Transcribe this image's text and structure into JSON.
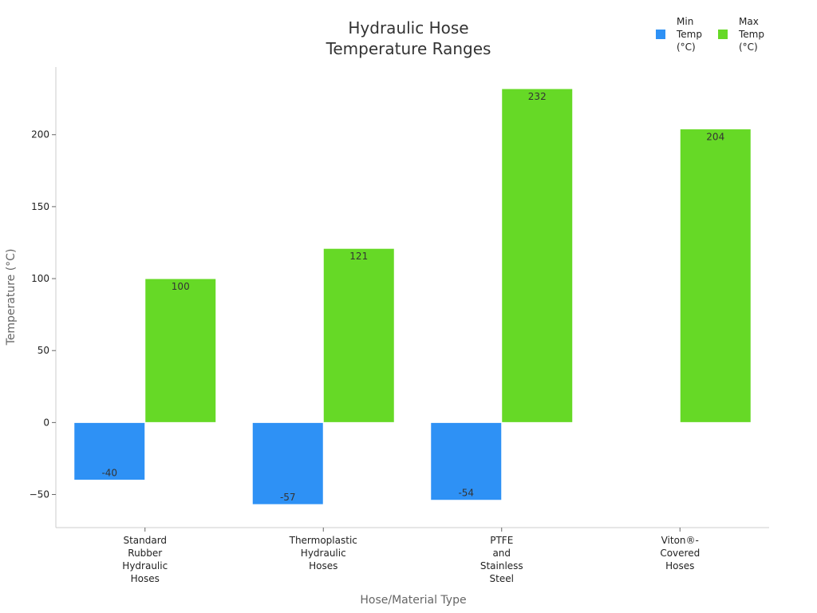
{
  "chart_data": {
    "type": "bar",
    "title_lines": [
      "Hydraulic Hose",
      "Temperature Ranges"
    ],
    "xlabel": "Hose/Material Type",
    "ylabel": "Temperature (°C)",
    "ylim": [
      -73,
      247
    ],
    "yticks": [
      -50,
      0,
      50,
      100,
      150,
      200
    ],
    "categories": [
      [
        "Standard",
        "Rubber",
        "Hydraulic",
        "Hoses"
      ],
      [
        "Thermoplastic",
        "Hydraulic",
        "Hoses"
      ],
      [
        "PTFE",
        "and",
        "Stainless",
        "Steel"
      ],
      [
        "Viton®-",
        "Covered",
        "Hoses"
      ]
    ],
    "series": [
      {
        "name": "Min Temp (°C)",
        "name_lines": [
          "Min",
          "Temp",
          "(°C)"
        ],
        "color": "#2e91f5",
        "values": [
          -40,
          -57,
          -54,
          null
        ]
      },
      {
        "name": "Max Temp (°C)",
        "name_lines": [
          "Max",
          "Temp",
          "(°C)"
        ],
        "color": "#66d926",
        "values": [
          100,
          121,
          232,
          204
        ]
      }
    ],
    "legend_position": "top-right"
  }
}
